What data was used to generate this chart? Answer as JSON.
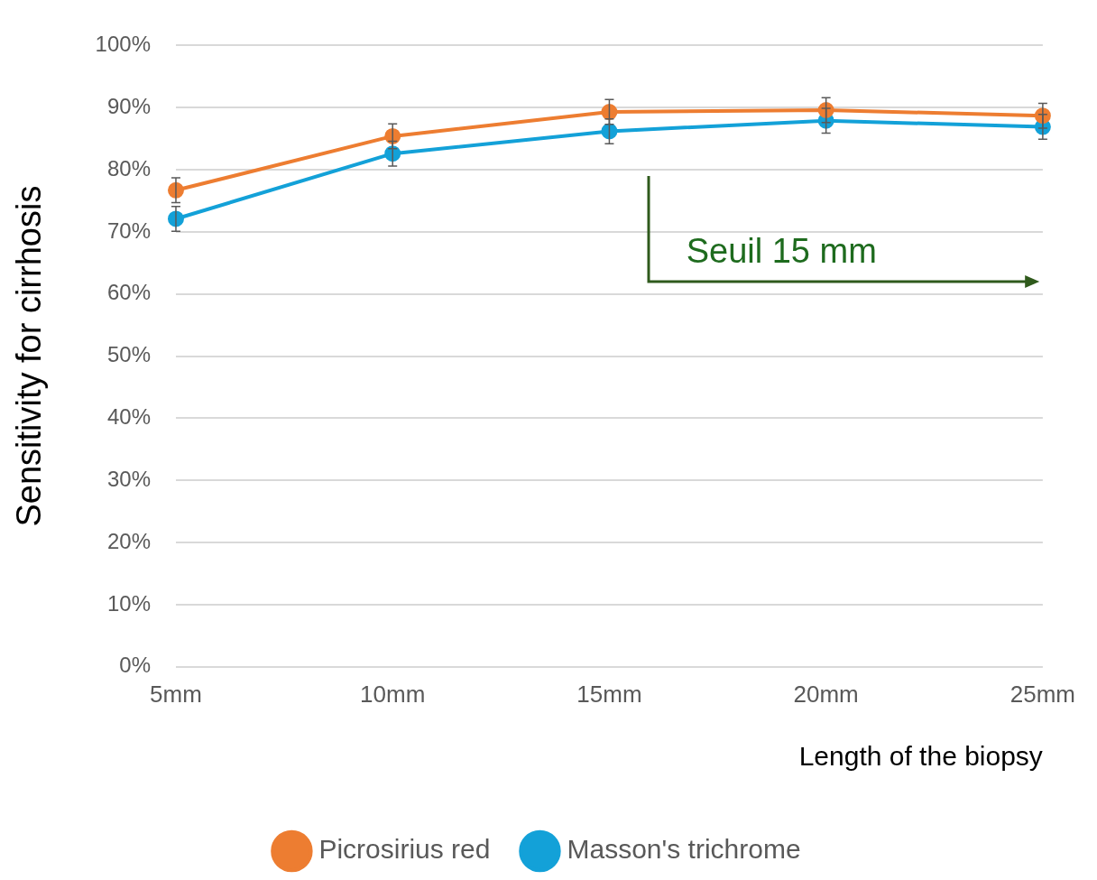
{
  "chart_data": {
    "type": "line",
    "xlabel": "Length of the biopsy",
    "ylabel": "Sensitivity for cirrhosis",
    "categories": [
      "5mm",
      "10mm",
      "15mm",
      "20mm",
      "25mm"
    ],
    "series": [
      {
        "name": "Picrosirius red",
        "color": "#ed7d31",
        "values": [
          76.7,
          85.4,
          89.3,
          89.6,
          88.7
        ],
        "errors": [
          2,
          2,
          2,
          2,
          2
        ]
      },
      {
        "name": "Masson's trichrome",
        "color": "#13a1d8",
        "values": [
          72.1,
          82.6,
          86.2,
          87.9,
          86.9
        ],
        "errors": [
          2,
          2,
          2,
          2,
          2
        ]
      }
    ],
    "ylim": [
      0,
      100
    ],
    "yticks": [
      {
        "value": 0,
        "label": "0%"
      },
      {
        "value": 10,
        "label": "10%"
      },
      {
        "value": 20,
        "label": "20%"
      },
      {
        "value": 30,
        "label": "30%"
      },
      {
        "value": 40,
        "label": "40%"
      },
      {
        "value": 50,
        "label": "50%"
      },
      {
        "value": 60,
        "label": "60%"
      },
      {
        "value": 70,
        "label": "70%"
      },
      {
        "value": 80,
        "label": "80%"
      },
      {
        "value": 90,
        "label": "90%"
      },
      {
        "value": 100,
        "label": "100%"
      }
    ],
    "grid": "y",
    "legend": "bottom",
    "marker": "circle",
    "line_style": "solid",
    "annotations": [
      "Seuil 15 mm"
    ]
  }
}
